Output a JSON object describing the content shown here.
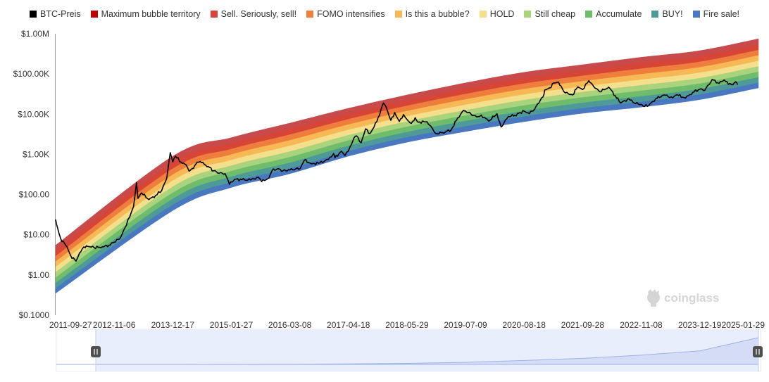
{
  "chart_data": {
    "type": "line",
    "title": "",
    "y_scale": "log",
    "ylim": [
      0.1,
      1000000
    ],
    "y_tick_labels": [
      "$0.1000",
      "$1.00",
      "$10.00",
      "$100.00",
      "$1.00K",
      "$10.00K",
      "$100.00K",
      "$1.00M"
    ],
    "x_range": [
      "2011-09-27",
      "2025-01-29"
    ],
    "x_tick_labels": [
      "2011-09-27",
      "2012-11-06",
      "2013-12-17",
      "2015-01-27",
      "2016-03-08",
      "2017-04-18",
      "2018-05-29",
      "2019-07-09",
      "2020-08-18",
      "2021-09-28",
      "2022-11-08",
      "2023-12-19",
      "2025-01-29"
    ],
    "legend": [
      {
        "name": "BTC-Preis",
        "color": "#000000"
      },
      {
        "name": "Maximum bubble territory",
        "color": "#c00000"
      },
      {
        "name": "Sell. Seriously, sell!",
        "color": "#d64535"
      },
      {
        "name": "FOMO intensifies",
        "color": "#ef7d3c"
      },
      {
        "name": "Is this a bubble?",
        "color": "#f7b955"
      },
      {
        "name": "HOLD",
        "color": "#f4df8c"
      },
      {
        "name": "Still cheap",
        "color": "#a9d37c"
      },
      {
        "name": "Accumulate",
        "color": "#6fbd6c"
      },
      {
        "name": "BUY!",
        "color": "#4e9a98"
      },
      {
        "name": "Fire sale!",
        "color": "#4a78c0"
      }
    ],
    "rainbow_bands": {
      "layer_colors": [
        "#4a78c0",
        "#4e9a98",
        "#6fbd6c",
        "#a9d37c",
        "#f4df8c",
        "#f7b955",
        "#ef7d3c",
        "#d64535",
        "#c94a4a"
      ],
      "lower_bound": [
        {
          "x": "2011-09-27",
          "y": 0.35
        },
        {
          "x": "2013-12-17",
          "y": 40
        },
        {
          "x": "2015-01-27",
          "y": 150
        },
        {
          "x": "2016-03-08",
          "y": 330
        },
        {
          "x": "2017-04-18",
          "y": 900
        },
        {
          "x": "2018-05-29",
          "y": 2000
        },
        {
          "x": "2019-07-09",
          "y": 3700
        },
        {
          "x": "2020-08-18",
          "y": 6500
        },
        {
          "x": "2021-09-28",
          "y": 10500
        },
        {
          "x": "2022-11-08",
          "y": 15000
        },
        {
          "x": "2023-12-19",
          "y": 23000
        },
        {
          "x": "2025-01-29",
          "y": 45000
        }
      ],
      "upper_bound": [
        {
          "x": "2011-09-27",
          "y": 5.5
        },
        {
          "x": "2013-12-17",
          "y": 900
        },
        {
          "x": "2015-01-27",
          "y": 2600
        },
        {
          "x": "2016-03-08",
          "y": 6000
        },
        {
          "x": "2017-04-18",
          "y": 14000
        },
        {
          "x": "2018-05-29",
          "y": 30000
        },
        {
          "x": "2019-07-09",
          "y": 60000
        },
        {
          "x": "2020-08-18",
          "y": 110000
        },
        {
          "x": "2021-09-28",
          "y": 170000
        },
        {
          "x": "2022-11-08",
          "y": 260000
        },
        {
          "x": "2023-12-19",
          "y": 380000
        },
        {
          "x": "2025-01-29",
          "y": 750000
        }
      ]
    },
    "series": [
      {
        "name": "BTC-Preis",
        "color": "#000000",
        "points": [
          {
            "x": "2011-09-27",
            "y": 24
          },
          {
            "x": "2011-10-10",
            "y": 15
          },
          {
            "x": "2011-11-01",
            "y": 8
          },
          {
            "x": "2011-12-15",
            "y": 5
          },
          {
            "x": "2012-01-10",
            "y": 3
          },
          {
            "x": "2012-02-15",
            "y": 2.2
          },
          {
            "x": "2012-03-10",
            "y": 3.5
          },
          {
            "x": "2012-04-10",
            "y": 5
          },
          {
            "x": "2012-05-15",
            "y": 5.1
          },
          {
            "x": "2012-06-20",
            "y": 4.8
          },
          {
            "x": "2012-08-15",
            "y": 5
          },
          {
            "x": "2012-10-01",
            "y": 5.5
          },
          {
            "x": "2012-11-06",
            "y": 6.5
          },
          {
            "x": "2012-12-20",
            "y": 8.5
          },
          {
            "x": "2013-01-20",
            "y": 15
          },
          {
            "x": "2013-02-20",
            "y": 27
          },
          {
            "x": "2013-03-20",
            "y": 50
          },
          {
            "x": "2013-04-10",
            "y": 200
          },
          {
            "x": "2013-04-20",
            "y": 80
          },
          {
            "x": "2013-05-15",
            "y": 110
          },
          {
            "x": "2013-07-05",
            "y": 75
          },
          {
            "x": "2013-08-20",
            "y": 95
          },
          {
            "x": "2013-10-01",
            "y": 125
          },
          {
            "x": "2013-11-05",
            "y": 250
          },
          {
            "x": "2013-11-30",
            "y": 1100
          },
          {
            "x": "2013-12-17",
            "y": 650
          },
          {
            "x": "2014-01-05",
            "y": 900
          },
          {
            "x": "2014-02-20",
            "y": 600
          },
          {
            "x": "2014-03-20",
            "y": 550
          },
          {
            "x": "2014-04-10",
            "y": 380
          },
          {
            "x": "2014-05-10",
            "y": 450
          },
          {
            "x": "2014-06-05",
            "y": 640
          },
          {
            "x": "2014-07-05",
            "y": 620
          },
          {
            "x": "2014-08-20",
            "y": 500
          },
          {
            "x": "2014-09-25",
            "y": 390
          },
          {
            "x": "2014-11-05",
            "y": 340
          },
          {
            "x": "2014-12-15",
            "y": 330
          },
          {
            "x": "2015-01-14",
            "y": 180
          },
          {
            "x": "2015-02-20",
            "y": 240
          },
          {
            "x": "2015-04-10",
            "y": 235
          },
          {
            "x": "2015-06-10",
            "y": 230
          },
          {
            "x": "2015-08-01",
            "y": 270
          },
          {
            "x": "2015-08-25",
            "y": 210
          },
          {
            "x": "2015-10-15",
            "y": 260
          },
          {
            "x": "2015-11-05",
            "y": 390
          },
          {
            "x": "2015-12-15",
            "y": 440
          },
          {
            "x": "2016-01-20",
            "y": 390
          },
          {
            "x": "2016-03-08",
            "y": 410
          },
          {
            "x": "2016-05-20",
            "y": 450
          },
          {
            "x": "2016-06-17",
            "y": 720
          },
          {
            "x": "2016-08-05",
            "y": 580
          },
          {
            "x": "2016-10-01",
            "y": 610
          },
          {
            "x": "2016-12-01",
            "y": 750
          },
          {
            "x": "2017-01-05",
            "y": 1050
          },
          {
            "x": "2017-01-15",
            "y": 820
          },
          {
            "x": "2017-03-01",
            "y": 1200
          },
          {
            "x": "2017-03-25",
            "y": 930
          },
          {
            "x": "2017-04-18",
            "y": 1210
          },
          {
            "x": "2017-05-25",
            "y": 2500
          },
          {
            "x": "2017-06-12",
            "y": 2900
          },
          {
            "x": "2017-07-15",
            "y": 1950
          },
          {
            "x": "2017-08-15",
            "y": 4300
          },
          {
            "x": "2017-09-15",
            "y": 3300
          },
          {
            "x": "2017-11-01",
            "y": 6500
          },
          {
            "x": "2017-12-17",
            "y": 19000
          },
          {
            "x": "2018-01-05",
            "y": 15000
          },
          {
            "x": "2018-02-06",
            "y": 7000
          },
          {
            "x": "2018-03-05",
            "y": 11000
          },
          {
            "x": "2018-04-06",
            "y": 6600
          },
          {
            "x": "2018-05-05",
            "y": 9800
          },
          {
            "x": "2018-05-29",
            "y": 7400
          },
          {
            "x": "2018-06-29",
            "y": 5900
          },
          {
            "x": "2018-07-25",
            "y": 8200
          },
          {
            "x": "2018-08-15",
            "y": 6300
          },
          {
            "x": "2018-10-15",
            "y": 6500
          },
          {
            "x": "2018-11-20",
            "y": 4500
          },
          {
            "x": "2018-12-15",
            "y": 3300
          },
          {
            "x": "2019-02-01",
            "y": 3450
          },
          {
            "x": "2019-04-01",
            "y": 4100
          },
          {
            "x": "2019-05-15",
            "y": 8000
          },
          {
            "x": "2019-06-26",
            "y": 12500
          },
          {
            "x": "2019-07-09",
            "y": 12000
          },
          {
            "x": "2019-08-15",
            "y": 10200
          },
          {
            "x": "2019-09-25",
            "y": 8500
          },
          {
            "x": "2019-10-26",
            "y": 9500
          },
          {
            "x": "2019-12-17",
            "y": 6700
          },
          {
            "x": "2020-02-12",
            "y": 10300
          },
          {
            "x": "2020-03-12",
            "y": 4800
          },
          {
            "x": "2020-05-01",
            "y": 8800
          },
          {
            "x": "2020-06-15",
            "y": 9400
          },
          {
            "x": "2020-08-18",
            "y": 12000
          },
          {
            "x": "2020-09-15",
            "y": 10800
          },
          {
            "x": "2020-10-20",
            "y": 12000
          },
          {
            "x": "2020-11-20",
            "y": 18000
          },
          {
            "x": "2020-12-28",
            "y": 27000
          },
          {
            "x": "2021-01-08",
            "y": 40000
          },
          {
            "x": "2021-02-10",
            "y": 45000
          },
          {
            "x": "2021-03-13",
            "y": 60000
          },
          {
            "x": "2021-04-14",
            "y": 63000
          },
          {
            "x": "2021-05-19",
            "y": 37000
          },
          {
            "x": "2021-06-22",
            "y": 32000
          },
          {
            "x": "2021-07-20",
            "y": 30000
          },
          {
            "x": "2021-08-25",
            "y": 48000
          },
          {
            "x": "2021-09-28",
            "y": 41000
          },
          {
            "x": "2021-11-10",
            "y": 68000
          },
          {
            "x": "2021-12-15",
            "y": 48000
          },
          {
            "x": "2022-01-24",
            "y": 36000
          },
          {
            "x": "2022-03-28",
            "y": 47000
          },
          {
            "x": "2022-05-12",
            "y": 29000
          },
          {
            "x": "2022-06-18",
            "y": 19000
          },
          {
            "x": "2022-08-15",
            "y": 24000
          },
          {
            "x": "2022-09-20",
            "y": 19000
          },
          {
            "x": "2022-11-08",
            "y": 17500
          },
          {
            "x": "2022-11-21",
            "y": 15800
          },
          {
            "x": "2022-12-31",
            "y": 16500
          },
          {
            "x": "2023-02-15",
            "y": 24000
          },
          {
            "x": "2023-04-14",
            "y": 30000
          },
          {
            "x": "2023-06-15",
            "y": 25500
          },
          {
            "x": "2023-07-15",
            "y": 30500
          },
          {
            "x": "2023-09-11",
            "y": 25000
          },
          {
            "x": "2023-11-01",
            "y": 35000
          },
          {
            "x": "2023-12-19",
            "y": 42000
          },
          {
            "x": "2024-01-23",
            "y": 39000
          },
          {
            "x": "2024-03-14",
            "y": 73000
          },
          {
            "x": "2024-05-01",
            "y": 58000
          },
          {
            "x": "2024-06-05",
            "y": 71000
          },
          {
            "x": "2024-07-05",
            "y": 55000
          },
          {
            "x": "2024-08-05",
            "y": 54000
          },
          {
            "x": "2024-08-25",
            "y": 64000
          },
          {
            "x": "2024-09-06",
            "y": 54000
          }
        ]
      }
    ]
  },
  "watermark": {
    "text": "coinglass"
  }
}
